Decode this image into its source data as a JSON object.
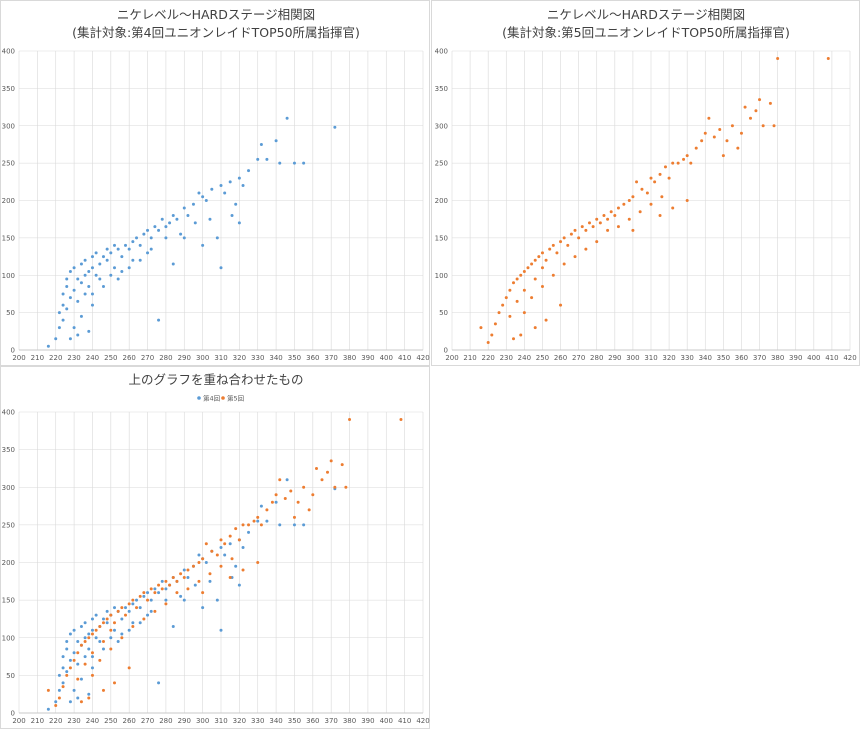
{
  "colors": {
    "series4": "#5b9bd5",
    "series5": "#ed7d31",
    "grid": "#d9d9d9"
  },
  "axes": {
    "x": {
      "min": 200,
      "max": 420,
      "step": 10,
      "ticks": [
        "200",
        "210",
        "220",
        "230",
        "240",
        "250",
        "260",
        "270",
        "280",
        "290",
        "300",
        "310",
        "320",
        "330",
        "340",
        "350",
        "360",
        "370",
        "380",
        "390",
        "400",
        "410",
        "420"
      ]
    },
    "y": {
      "min": 0,
      "max": 400,
      "step": 50,
      "ticks": [
        "0",
        "50",
        "100",
        "150",
        "200",
        "250",
        "300",
        "350",
        "400"
      ]
    }
  },
  "panels": {
    "p1": {
      "title1": "ニケレベル～HARDステージ相関図",
      "title2": "(集計対象:第4回ユニオンレイドTOP50所属指揮官)"
    },
    "p2": {
      "title1": "ニケレベル～HARDステージ相関図",
      "title2": "(集計対象:第5回ユニオンレイドTOP50所属指揮官)"
    },
    "p3": {
      "title1": "上のグラフを重ね合わせたもの",
      "legend": [
        "第4回",
        "第5回"
      ]
    }
  },
  "chart_data": [
    {
      "type": "scatter",
      "title": "ニケレベル～HARDステージ相関図 (集計対象:第4回ユニオンレイドTOP50所属指揮官)",
      "xlabel": "",
      "ylabel": "",
      "xlim": [
        200,
        420
      ],
      "ylim": [
        0,
        400
      ],
      "grid": true,
      "series": [
        {
          "color": "#5b9bd5",
          "points": [
            [
              216,
              5
            ],
            [
              220,
              15
            ],
            [
              222,
              30
            ],
            [
              222,
              50
            ],
            [
              224,
              60
            ],
            [
              224,
              75
            ],
            [
              226,
              85
            ],
            [
              226,
              95
            ],
            [
              228,
              105
            ],
            [
              228,
              70
            ],
            [
              230,
              80
            ],
            [
              230,
              110
            ],
            [
              232,
              95
            ],
            [
              232,
              65
            ],
            [
              234,
              90
            ],
            [
              234,
              115
            ],
            [
              236,
              100
            ],
            [
              236,
              120
            ],
            [
              238,
              105
            ],
            [
              238,
              85
            ],
            [
              240,
              110
            ],
            [
              240,
              125
            ],
            [
              242,
              100
            ],
            [
              242,
              130
            ],
            [
              244,
              115
            ],
            [
              246,
              125
            ],
            [
              248,
              120
            ],
            [
              248,
              135
            ],
            [
              250,
              130
            ],
            [
              252,
              110
            ],
            [
              252,
              140
            ],
            [
              254,
              135
            ],
            [
              256,
              125
            ],
            [
              258,
              140
            ],
            [
              260,
              135
            ],
            [
              262,
              145
            ],
            [
              264,
              150
            ],
            [
              266,
              140
            ],
            [
              268,
              155
            ],
            [
              270,
              160
            ],
            [
              272,
              150
            ],
            [
              274,
              165
            ],
            [
              276,
              160
            ],
            [
              278,
              175
            ],
            [
              280,
              165
            ],
            [
              282,
              170
            ],
            [
              284,
              180
            ],
            [
              286,
              175
            ],
            [
              290,
              190
            ],
            [
              292,
              180
            ],
            [
              295,
              195
            ],
            [
              298,
              210
            ],
            [
              300,
              205
            ],
            [
              302,
              200
            ],
            [
              305,
              215
            ],
            [
              310,
              220
            ],
            [
              312,
              210
            ],
            [
              315,
              225
            ],
            [
              320,
              230
            ],
            [
              322,
              220
            ],
            [
              325,
              240
            ],
            [
              330,
              255
            ],
            [
              332,
              275
            ],
            [
              335,
              255
            ],
            [
              340,
              280
            ],
            [
              342,
              250
            ],
            [
              346,
              310
            ],
            [
              350,
              250
            ],
            [
              355,
              250
            ],
            [
              372,
              298
            ],
            [
              230,
              30
            ],
            [
              232,
              20
            ],
            [
              224,
              40
            ],
            [
              228,
              15
            ],
            [
              234,
              45
            ],
            [
              238,
              25
            ],
            [
              226,
              55
            ],
            [
              240,
              75
            ],
            [
              244,
              95
            ],
            [
              250,
              100
            ],
            [
              256,
              105
            ],
            [
              262,
              120
            ],
            [
              270,
              130
            ],
            [
              276,
              40
            ],
            [
              284,
              115
            ],
            [
              290,
              150
            ],
            [
              300,
              140
            ],
            [
              310,
              110
            ],
            [
              236,
              75
            ],
            [
              240,
              60
            ],
            [
              246,
              85
            ],
            [
              254,
              95
            ],
            [
              260,
              110
            ],
            [
              266,
              120
            ],
            [
              272,
              135
            ],
            [
              280,
              150
            ],
            [
              288,
              155
            ],
            [
              296,
              170
            ],
            [
              304,
              175
            ],
            [
              308,
              150
            ],
            [
              316,
              180
            ],
            [
              318,
              195
            ],
            [
              320,
              170
            ]
          ]
        }
      ]
    },
    {
      "type": "scatter",
      "title": "ニケレベル～HARDステージ相関図 (集計対象:第5回ユニオンレイドTOP50所属指揮官)",
      "xlabel": "",
      "ylabel": "",
      "xlim": [
        200,
        420
      ],
      "ylim": [
        0,
        400
      ],
      "grid": true,
      "series": [
        {
          "color": "#ed7d31",
          "points": [
            [
              216,
              30
            ],
            [
              220,
              10
            ],
            [
              222,
              20
            ],
            [
              224,
              35
            ],
            [
              226,
              50
            ],
            [
              228,
              60
            ],
            [
              230,
              70
            ],
            [
              232,
              80
            ],
            [
              232,
              45
            ],
            [
              234,
              90
            ],
            [
              236,
              95
            ],
            [
              236,
              65
            ],
            [
              238,
              100
            ],
            [
              240,
              105
            ],
            [
              240,
              80
            ],
            [
              242,
              110
            ],
            [
              244,
              115
            ],
            [
              246,
              120
            ],
            [
              246,
              95
            ],
            [
              248,
              125
            ],
            [
              250,
              130
            ],
            [
              250,
              110
            ],
            [
              252,
              120
            ],
            [
              254,
              135
            ],
            [
              256,
              140
            ],
            [
              258,
              130
            ],
            [
              260,
              145
            ],
            [
              262,
              150
            ],
            [
              264,
              140
            ],
            [
              266,
              155
            ],
            [
              268,
              160
            ],
            [
              270,
              150
            ],
            [
              272,
              165
            ],
            [
              274,
              160
            ],
            [
              276,
              170
            ],
            [
              278,
              165
            ],
            [
              280,
              175
            ],
            [
              282,
              170
            ],
            [
              284,
              180
            ],
            [
              286,
              175
            ],
            [
              288,
              185
            ],
            [
              290,
              180
            ],
            [
              292,
              190
            ],
            [
              295,
              195
            ],
            [
              298,
              200
            ],
            [
              300,
              205
            ],
            [
              302,
              225
            ],
            [
              305,
              215
            ],
            [
              308,
              210
            ],
            [
              310,
              230
            ],
            [
              312,
              225
            ],
            [
              315,
              235
            ],
            [
              318,
              245
            ],
            [
              320,
              230
            ],
            [
              322,
              250
            ],
            [
              325,
              250
            ],
            [
              328,
              255
            ],
            [
              330,
              260
            ],
            [
              332,
              250
            ],
            [
              335,
              270
            ],
            [
              338,
              280
            ],
            [
              340,
              290
            ],
            [
              342,
              310
            ],
            [
              345,
              285
            ],
            [
              348,
              295
            ],
            [
              350,
              260
            ],
            [
              352,
              280
            ],
            [
              355,
              300
            ],
            [
              358,
              270
            ],
            [
              360,
              290
            ],
            [
              362,
              325
            ],
            [
              365,
              310
            ],
            [
              368,
              320
            ],
            [
              370,
              335
            ],
            [
              372,
              300
            ],
            [
              376,
              330
            ],
            [
              378,
              300
            ],
            [
              380,
              390
            ],
            [
              408,
              390
            ],
            [
              240,
              50
            ],
            [
              244,
              70
            ],
            [
              250,
              85
            ],
            [
              256,
              100
            ],
            [
              262,
              115
            ],
            [
              268,
              125
            ],
            [
              274,
              135
            ],
            [
              280,
              145
            ],
            [
              286,
              160
            ],
            [
              292,
              165
            ],
            [
              298,
              175
            ],
            [
              304,
              185
            ],
            [
              310,
              195
            ],
            [
              316,
              205
            ],
            [
              322,
              190
            ],
            [
              330,
              200
            ],
            [
              238,
              20
            ],
            [
              234,
              15
            ],
            [
              246,
              30
            ],
            [
              252,
              40
            ],
            [
              260,
              60
            ],
            [
              300,
              160
            ],
            [
              315,
              180
            ]
          ]
        }
      ]
    },
    {
      "type": "scatter",
      "title": "上のグラフを重ね合わせたもの",
      "xlabel": "",
      "ylabel": "",
      "xlim": [
        200,
        420
      ],
      "ylim": [
        0,
        400
      ],
      "grid": true,
      "legend": "top",
      "series": [
        {
          "name": "第4回",
          "color": "#5b9bd5",
          "ref": 0
        },
        {
          "name": "第5回",
          "color": "#ed7d31",
          "ref": 1
        }
      ]
    }
  ]
}
